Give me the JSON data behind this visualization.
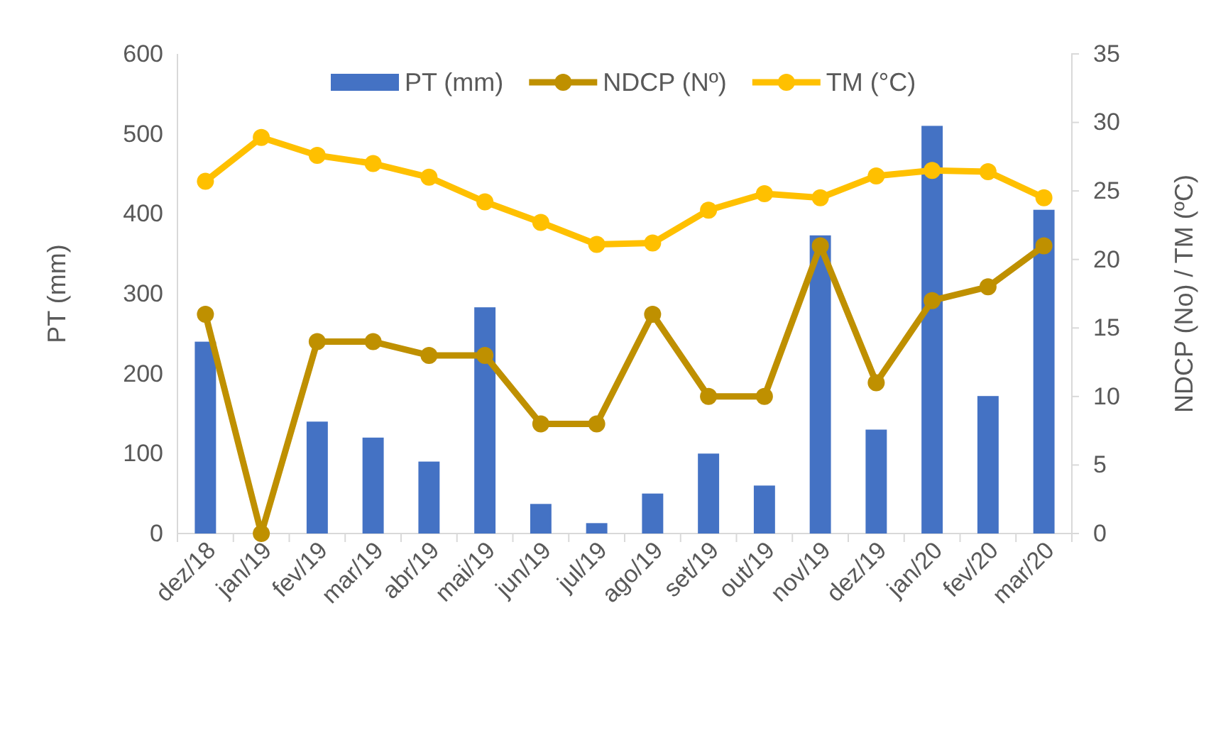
{
  "chart_data": {
    "type": "bar",
    "categories": [
      "dez/18",
      "jan/19",
      "fev/19",
      "mar/19",
      "abr/19",
      "mai/19",
      "jun/19",
      "jul/19",
      "ago/19",
      "set/19",
      "out/19",
      "nov/19",
      "dez/19",
      "jan/20",
      "fev/20",
      "mar/20"
    ],
    "ylabel": "PT (mm)",
    "y2label": "NDCP (No) / TM (ºC)",
    "ylim": [
      0,
      600
    ],
    "yticks": [
      0,
      100,
      200,
      300,
      400,
      500,
      600
    ],
    "y2lim": [
      0,
      35
    ],
    "y2ticks": [
      0,
      5,
      10,
      15,
      20,
      25,
      30,
      35
    ],
    "grid": false,
    "legend": "top",
    "marker": "circle",
    "series": [
      {
        "name": "PT (mm)",
        "color": "#4472c4",
        "values": [
          240,
          0,
          140,
          120,
          90,
          283,
          37,
          13,
          50,
          100,
          60,
          373,
          130,
          510,
          172,
          405
        ]
      },
      {
        "name": "NDCP (Nº)",
        "type": "line",
        "axis": "y2",
        "color": "#bf9000",
        "values": [
          16,
          0,
          14,
          14,
          13,
          13,
          8,
          8,
          16,
          10,
          10,
          21,
          11,
          17,
          18,
          21
        ]
      },
      {
        "name": "TM (°C)",
        "type": "line",
        "axis": "y2",
        "color": "#ffc000",
        "values": [
          25.7,
          28.9,
          27.6,
          27,
          26,
          24.2,
          22.7,
          21.1,
          21.2,
          23.6,
          24.8,
          24.5,
          26.1,
          26.5,
          26.4,
          24.5
        ]
      }
    ]
  }
}
